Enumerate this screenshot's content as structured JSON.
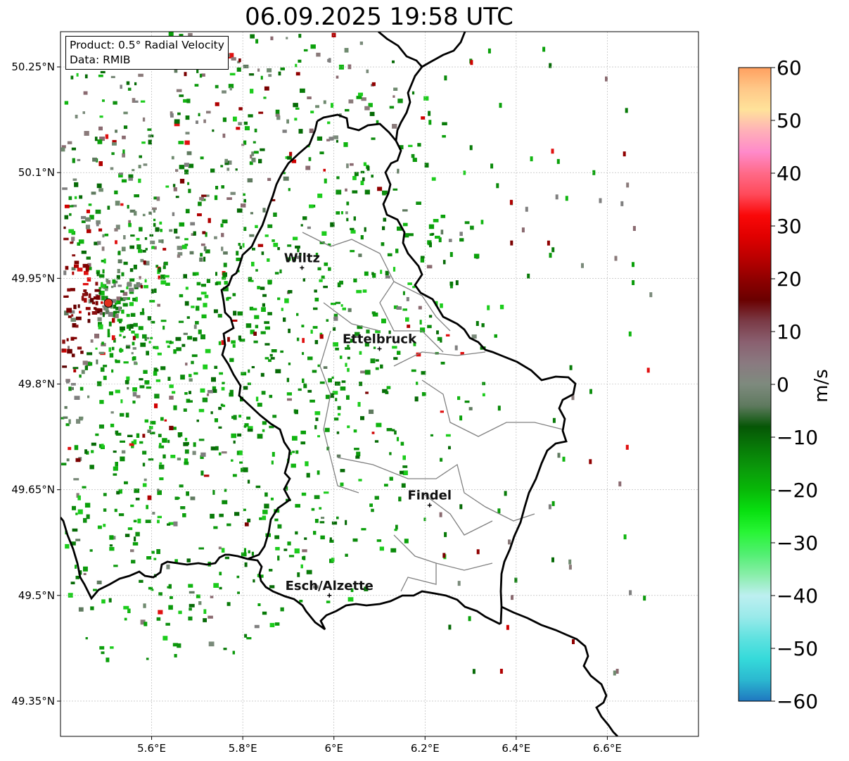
{
  "title": "06.09.2025 19:58 UTC",
  "info_box": {
    "product": "Product: 0.5° Radial Velocity",
    "data": "Data: RMIB"
  },
  "map": {
    "lon_range": [
      5.4,
      6.8
    ],
    "lat_range": [
      49.3,
      50.3
    ],
    "x_ticks": [
      {
        "value": 5.6,
        "label": "5.6°E"
      },
      {
        "value": 5.8,
        "label": "5.8°E"
      },
      {
        "value": 6.0,
        "label": "6°E"
      },
      {
        "value": 6.2,
        "label": "6.2°E"
      },
      {
        "value": 6.4,
        "label": "6.4°E"
      },
      {
        "value": 6.6,
        "label": "6.6°E"
      }
    ],
    "y_ticks": [
      {
        "value": 50.25,
        "label": "50.25°N"
      },
      {
        "value": 50.1,
        "label": "50.1°N"
      },
      {
        "value": 49.95,
        "label": "49.95°N"
      },
      {
        "value": 49.8,
        "label": "49.8°N"
      },
      {
        "value": 49.65,
        "label": "49.65°N"
      },
      {
        "value": 49.5,
        "label": "49.5°N"
      },
      {
        "value": 49.35,
        "label": "49.35°N"
      }
    ],
    "radar_site": {
      "lon": 5.505,
      "lat": 49.915
    },
    "cities": [
      {
        "name": "Wiltz",
        "lon": 5.93,
        "lat": 49.965
      },
      {
        "name": "Ettelbruck",
        "lon": 6.1,
        "lat": 49.85
      },
      {
        "name": "Findel",
        "lon": 6.21,
        "lat": 49.628
      },
      {
        "name": "Esch/Alzette",
        "lon": 5.99,
        "lat": 49.5
      }
    ],
    "colors": {
      "border": "#000000",
      "canton_lines": "#808080",
      "grid": "#b0b0b0",
      "radar_site": "#e0301e"
    }
  },
  "colorbar": {
    "unit_label": "m/s",
    "range": [
      -60,
      60
    ],
    "ticks": [
      {
        "value": 60,
        "label": "60"
      },
      {
        "value": 50,
        "label": "50"
      },
      {
        "value": 40,
        "label": "40"
      },
      {
        "value": 30,
        "label": "30"
      },
      {
        "value": 20,
        "label": "20"
      },
      {
        "value": 10,
        "label": "10"
      },
      {
        "value": 0,
        "label": "0"
      },
      {
        "value": -10,
        "label": "−10"
      },
      {
        "value": -20,
        "label": "−20"
      },
      {
        "value": -30,
        "label": "−30"
      },
      {
        "value": -40,
        "label": "−40"
      },
      {
        "value": -50,
        "label": "−50"
      },
      {
        "value": -60,
        "label": "−60"
      }
    ],
    "stops": [
      "#1f77c0",
      "#2bb8d0",
      "#35dada",
      "#60e2e0",
      "#9aeaea",
      "#bdeff0",
      "#88eea8",
      "#50ef70",
      "#28f535",
      "#08e010",
      "#08b808",
      "#0a9a0a",
      "#087a08",
      "#065606",
      "#5f7a5f",
      "#7e8a7e",
      "#8a7a80",
      "#8a6070",
      "#7a3a46",
      "#6a0000",
      "#900000",
      "#bb0000",
      "#e00000",
      "#fa0808",
      "#ff4a5a",
      "#ff6a88",
      "#ff8aca",
      "#ffb0b8",
      "#ffe29a",
      "#ffc888",
      "#ffa060"
    ]
  }
}
